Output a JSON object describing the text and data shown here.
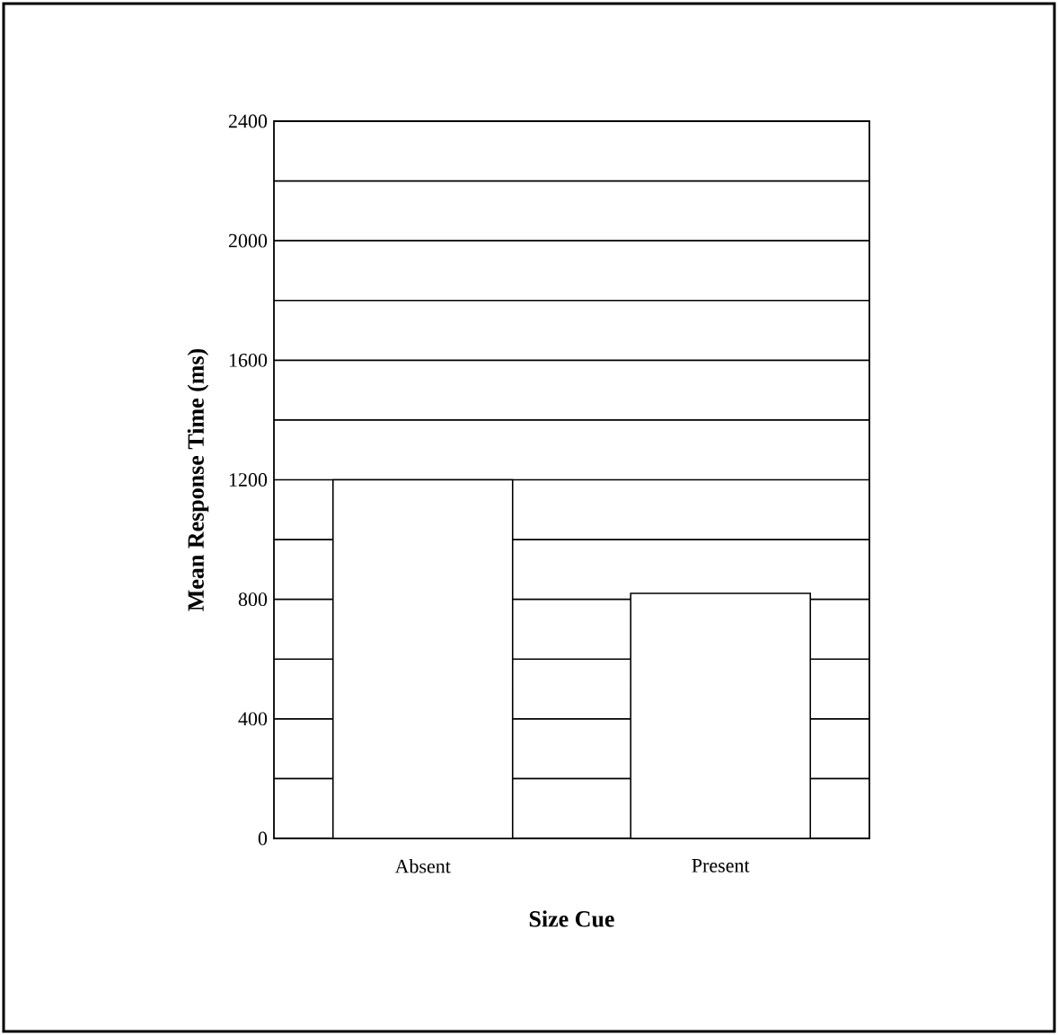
{
  "chart_data": {
    "type": "bar",
    "xlabel": "Size  Cue",
    "ylabel": "Mean  Response  Time  (ms)",
    "categories": [
      "Absent",
      "Present"
    ],
    "values": [
      1200,
      820
    ],
    "color": "#ffffff",
    "ylim": [
      0,
      2400
    ],
    "yticks": [
      0,
      {
        "value": 200,
        "label": null
      },
      400,
      {
        "value": 600,
        "label": null
      },
      800,
      {
        "value": 1000,
        "label": null
      },
      1200,
      {
        "value": 1400,
        "label": null
      },
      1600,
      {
        "value": 1800,
        "label": null
      },
      2000,
      {
        "value": 2200,
        "label": null
      },
      2400
    ],
    "grid": "y"
  }
}
